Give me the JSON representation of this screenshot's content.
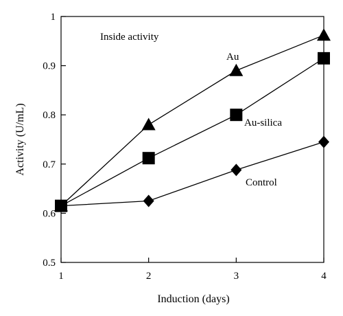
{
  "chart_data": {
    "type": "line",
    "title": "",
    "annotation": "Inside activity",
    "xlabel": "Induction (days)",
    "ylabel": "Activity (U/mL)",
    "xlim": [
      1,
      4
    ],
    "ylim": [
      0.5,
      1
    ],
    "x_ticks": [
      1,
      2,
      3,
      4
    ],
    "y_ticks": [
      0.5,
      0.6,
      0.7,
      0.8,
      0.9,
      1
    ],
    "y_tick_labels": [
      "0.5",
      "0.6",
      "0.7",
      "0.8",
      "0.9",
      "1"
    ],
    "x_tick_labels": [
      "1",
      "2",
      "3",
      "4"
    ],
    "grid": false,
    "series": [
      {
        "name": "Au",
        "marker": "triangle",
        "x": [
          1,
          2,
          3,
          4
        ],
        "values": [
          0.615,
          0.78,
          0.89,
          0.962
        ]
      },
      {
        "name": "Au-silica",
        "marker": "square",
        "x": [
          1,
          2,
          3,
          4
        ],
        "values": [
          0.615,
          0.712,
          0.8,
          0.915
        ]
      },
      {
        "name": "Control",
        "marker": "diamond",
        "x": [
          1,
          2,
          3,
          4
        ],
        "values": [
          0.615,
          0.625,
          0.688,
          0.745
        ]
      }
    ]
  }
}
